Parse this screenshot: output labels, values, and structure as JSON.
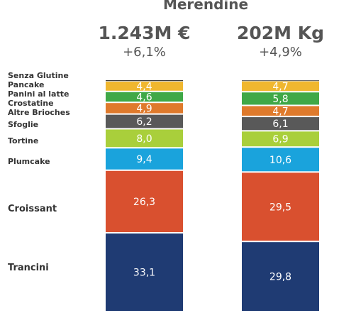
{
  "chart_data": {
    "type": "bar",
    "stacked": true,
    "normalized_percent": true,
    "title": "Merendine",
    "categories": [
      "Senza Glutine",
      "Pancake",
      "Panini al latte",
      "Crostatine",
      "Altre Brioches",
      "Sfoglie",
      "Tortine",
      "Plumcake",
      "Croissant",
      "Trancini"
    ],
    "columns": [
      {
        "headline": "1.243M €",
        "change": "+6,1%",
        "values": [
          0.3,
          0.3,
          4.4,
          4.6,
          4.9,
          6.2,
          8.0,
          9.4,
          26.3,
          33.1
        ],
        "labels": [
          "",
          "",
          "4,4",
          "4,6",
          "4,9",
          "6,2",
          "8,0",
          "9,4",
          "26,3",
          "33,1"
        ]
      },
      {
        "headline": "202M Kg",
        "change": "+4,9%",
        "values": [
          0.2,
          0.3,
          4.7,
          5.8,
          4.7,
          6.1,
          6.9,
          10.6,
          29.5,
          29.8
        ],
        "labels": [
          "",
          "",
          "4,7",
          "5,8",
          "4,7",
          "6,1",
          "6,9",
          "10,6",
          "29,5",
          "29,8"
        ]
      }
    ],
    "colors": [
      "#3a3a3a",
      "#c9c9c9",
      "#f0b72f",
      "#3fa847",
      "#df7a2c",
      "#595959",
      "#a9cf3b",
      "#1aa3dc",
      "#d9502f",
      "#1f3b73"
    ],
    "label_colors": [
      "#ffffff",
      "#ffffff",
      "#ffffff",
      "#ffffff",
      "#ffffff",
      "#ffffff",
      "#ffffff",
      "#ffffff",
      "#ffffff",
      "#ffffff"
    ]
  }
}
